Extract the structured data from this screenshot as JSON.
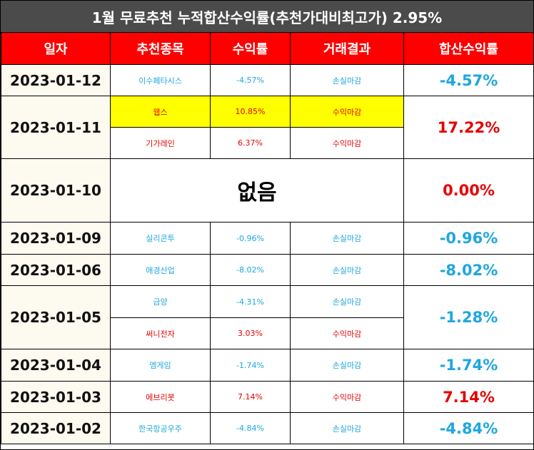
{
  "title": "1월 무료추천 누적합산수익률(추천가대비최고가) 2.95%",
  "headers": [
    "일자",
    "추천종목",
    "수익률",
    "거래결과",
    "합산수익률"
  ],
  "colors": {
    "header_bg": "#ff0000",
    "title_bg": "#4b4b4b",
    "loss": "#1fa6e0",
    "gain": "#e60000",
    "highlight": "#ffff00"
  },
  "rows": [
    {
      "date": "2023-01-12",
      "total": "-4.57%",
      "stocks": [
        {
          "name": "이수페타시스",
          "return": "-4.57%",
          "result": "손실마감"
        }
      ]
    },
    {
      "date": "2023-01-11",
      "total": "17.22%",
      "stocks": [
        {
          "name": "웹스",
          "return": "10.85%",
          "result": "수익마감"
        },
        {
          "name": "기가레인",
          "return": "6.37%",
          "result": "수익마감"
        }
      ]
    },
    {
      "date": "2023-01-10",
      "total": "0.00%",
      "none_label": "없음"
    },
    {
      "date": "2023-01-09",
      "total": "-0.96%",
      "stocks": [
        {
          "name": "실리콘투",
          "return": "-0.96%",
          "result": "손실마감"
        }
      ]
    },
    {
      "date": "2023-01-06",
      "total": "-8.02%",
      "stocks": [
        {
          "name": "애경산업",
          "return": "-8.02%",
          "result": "손실마감"
        }
      ]
    },
    {
      "date": "2023-01-05",
      "total": "-1.28%",
      "stocks": [
        {
          "name": "금양",
          "return": "-4.31%",
          "result": "손실마감"
        },
        {
          "name": "써니전자",
          "return": "3.03%",
          "result": "수익마감"
        }
      ]
    },
    {
      "date": "2023-01-04",
      "total": "-1.74%",
      "stocks": [
        {
          "name": "엠게임",
          "return": "-1.74%",
          "result": "손실마감"
        }
      ]
    },
    {
      "date": "2023-01-03",
      "total": "7.14%",
      "stocks": [
        {
          "name": "에브리봇",
          "return": "7.14%",
          "result": "수익마감"
        }
      ]
    },
    {
      "date": "2023-01-02",
      "total": "-4.84%",
      "stocks": [
        {
          "name": "한국항공우주",
          "return": "-4.84%",
          "result": "손실마감"
        }
      ]
    }
  ]
}
